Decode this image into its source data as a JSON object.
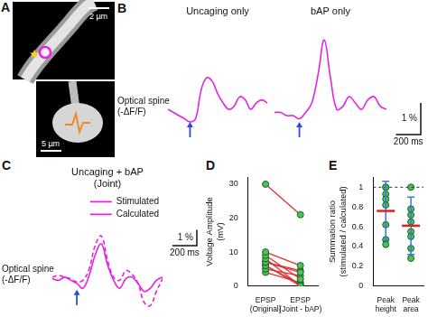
{
  "figure": {
    "panel_labels": [
      "A",
      "B",
      "C",
      "D",
      "E"
    ],
    "image_scale_bars": [
      "2 µm",
      "5 µm"
    ]
  },
  "chart_data": [
    {
      "type": "line",
      "title": "Uncaging only",
      "y_label": "Optical spine (-ΔF/F)",
      "x": [
        0,
        50,
        100,
        150,
        200,
        250,
        300,
        350,
        400,
        450,
        500,
        550,
        600,
        650,
        700,
        750,
        800,
        850,
        900
      ],
      "series": [
        {
          "color": "#e524e0",
          "values": [
            0.2,
            0.1,
            0.0,
            -0.1,
            -0.2,
            -0.1,
            0.8,
            1.2,
            1.1,
            0.7,
            0.4,
            0.2,
            0.3,
            0.6,
            0.5,
            0.2,
            0.4,
            0.5,
            0.4
          ]
        }
      ],
      "xlim": [
        0,
        900
      ],
      "ylim": [
        -1,
        3
      ],
      "tick_labels": false,
      "stimulus_x": 200
    },
    {
      "type": "line",
      "title": "bAP only",
      "x": [
        0,
        50,
        100,
        150,
        200,
        250,
        300,
        350,
        400,
        450,
        500,
        550,
        600,
        650,
        700,
        750,
        800,
        850,
        900
      ],
      "series": [
        {
          "color": "#e524e0",
          "values": [
            0.1,
            0.1,
            0.0,
            0.0,
            -0.1,
            0.1,
            0.4,
            1.3,
            2.4,
            1.2,
            0.2,
            0.3,
            0.6,
            0.4,
            0.2,
            0.5,
            0.6,
            0.3,
            0.2
          ]
        }
      ],
      "xlim": [
        0,
        900
      ],
      "ylim": [
        -1,
        3
      ],
      "tick_labels": false,
      "stimulus_x": 200,
      "scale_bar": {
        "x": 200,
        "x_label": "200 ms",
        "y": 1,
        "y_label": "1 %"
      }
    },
    {
      "type": "line",
      "title": "Uncaging + bAP (Joint)",
      "y_label": "Optical spine (-ΔF/F)",
      "x": [
        0,
        50,
        100,
        150,
        200,
        250,
        300,
        350,
        400,
        450,
        500,
        550,
        600,
        650,
        700,
        750,
        800,
        850,
        900
      ],
      "series": [
        {
          "name": "Stimulated",
          "color": "#e524e0",
          "line_style": "solid",
          "values": [
            0.3,
            0.2,
            0.4,
            0.2,
            0.0,
            -0.3,
            0.5,
            1.8,
            2.5,
            1.2,
            0.2,
            -0.3,
            0.3,
            0.4,
            0.0,
            -0.5,
            -0.3,
            0.2,
            0.4
          ]
        },
        {
          "name": "Calculated",
          "color": "#e524e0",
          "line_style": "dashed",
          "values": [
            0.4,
            0.5,
            0.4,
            0.3,
            0.1,
            0.2,
            0.9,
            2.4,
            3.0,
            1.5,
            0.4,
            0.2,
            0.8,
            0.6,
            0.0,
            -1.2,
            -1.4,
            -0.5,
            0.3
          ]
        }
      ],
      "xlim": [
        0,
        900
      ],
      "ylim": [
        -2,
        3.5
      ],
      "tick_labels": false,
      "stimulus_x": 200,
      "legend": "upper right",
      "scale_bar": {
        "x": 200,
        "x_label": "200 ms",
        "y": 1,
        "y_label": "1 %"
      }
    },
    {
      "type": "line",
      "categories": [
        "EPSP (Original)",
        "EPSP (Joint - bAP)"
      ],
      "y_label": "Voltage Amplitude (mV)",
      "ylim": [
        0,
        32
      ],
      "yticks": [
        0,
        10,
        20,
        30
      ],
      "grid": false,
      "color": "#e03030",
      "marker": "circle",
      "series": [
        {
          "values": [
            30,
            21
          ]
        },
        {
          "values": [
            10,
            6
          ]
        },
        {
          "values": [
            9,
            2
          ]
        },
        {
          "values": [
            8,
            0
          ]
        },
        {
          "values": [
            7,
            4
          ]
        },
        {
          "values": [
            7,
            4.5
          ]
        },
        {
          "values": [
            6,
            0
          ]
        },
        {
          "values": [
            6,
            0.5
          ]
        },
        {
          "values": [
            5,
            3
          ]
        },
        {
          "values": [
            4,
            1
          ]
        }
      ]
    },
    {
      "type": "scatter",
      "categories": [
        "Peak height",
        "Peak area"
      ],
      "y_label": "Summation ratio (stimulated / calculated)",
      "ylim": [
        0,
        1.1
      ],
      "yticks": [
        0,
        0.2,
        0.4,
        0.6,
        0.8,
        1
      ],
      "grid": false,
      "color": "#4cc25a",
      "marker": "circle",
      "points": [
        [
          1.0,
          1.0,
          0.93,
          0.88,
          0.82,
          0.62,
          0.47,
          0.42
        ],
        [
          1.0,
          0.78,
          0.72,
          0.65,
          0.55,
          0.5,
          0.38,
          0.28
        ]
      ],
      "mean": [
        0.76,
        0.61
      ],
      "error": [
        0.3,
        0.29
      ],
      "reference_line": 1
    }
  ]
}
